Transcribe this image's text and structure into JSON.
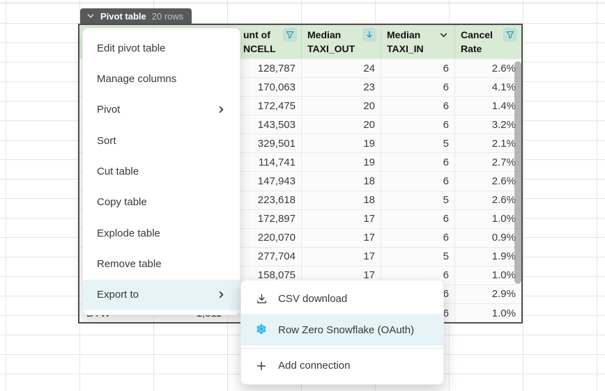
{
  "sheet_tab": {
    "label": "Pivot table",
    "row_count": "20 rows"
  },
  "context_menu": {
    "items": [
      {
        "label": "Edit pivot table",
        "has_submenu": false,
        "highlighted": false
      },
      {
        "label": "Manage columns",
        "has_submenu": false,
        "highlighted": false
      },
      {
        "label": "Pivot",
        "has_submenu": true,
        "highlighted": false
      },
      {
        "label": "Sort",
        "has_submenu": false,
        "highlighted": false
      },
      {
        "label": "Cut table",
        "has_submenu": false,
        "highlighted": false
      },
      {
        "label": "Copy table",
        "has_submenu": false,
        "highlighted": false
      },
      {
        "label": "Explode table",
        "has_submenu": false,
        "highlighted": false
      },
      {
        "label": "Remove table",
        "has_submenu": false,
        "highlighted": false
      },
      {
        "label": "Export to",
        "has_submenu": true,
        "highlighted": true
      }
    ]
  },
  "export_submenu": {
    "items": [
      {
        "label": "CSV download",
        "icon": "download-icon",
        "highlighted": false,
        "divider_before": false
      },
      {
        "label": "Row Zero Snowflake (OAuth)",
        "icon": "snowflake-icon",
        "highlighted": true,
        "divider_before": false
      },
      {
        "label": "Add connection",
        "icon": "plus-icon",
        "highlighted": false,
        "divider_before": true
      }
    ]
  },
  "pivot_table": {
    "columns": [
      {
        "header_line1": "",
        "header_line2": "",
        "icon": null
      },
      {
        "header_line1": "",
        "header_line2": "",
        "icon": "filter-icon"
      },
      {
        "header_line1": "unt of",
        "header_line2": "NCELL",
        "icon": "filter-icon"
      },
      {
        "header_line1": "Median",
        "header_line2": "TAXI_OUT",
        "icon": "sort-desc-icon"
      },
      {
        "header_line1": "Median",
        "header_line2": "TAXI_IN",
        "icon": "chevron-down-icon"
      },
      {
        "header_line1": "Cancel",
        "header_line2": "Rate",
        "icon": "filter-icon"
      }
    ],
    "rows": [
      [
        "",
        "",
        "128,787",
        "24",
        "6",
        "2.6%"
      ],
      [
        "",
        "",
        "170,063",
        "23",
        "6",
        "4.1%"
      ],
      [
        "",
        "",
        "172,475",
        "20",
        "6",
        "1.4%"
      ],
      [
        "",
        "",
        "143,503",
        "20",
        "6",
        "3.2%"
      ],
      [
        "",
        "",
        "329,501",
        "19",
        "5",
        "2.1%"
      ],
      [
        "",
        "",
        "114,741",
        "19",
        "6",
        "2.7%"
      ],
      [
        "",
        "",
        "147,943",
        "18",
        "6",
        "2.6%"
      ],
      [
        "",
        "",
        "223,618",
        "18",
        "5",
        "2.6%"
      ],
      [
        "",
        "",
        "172,897",
        "17",
        "6",
        "1.0%"
      ],
      [
        "",
        "",
        "220,070",
        "17",
        "6",
        "0.9%"
      ],
      [
        "",
        "",
        "277,704",
        "17",
        "5",
        "1.9%"
      ],
      [
        "",
        "",
        "158,075",
        "17",
        "6",
        "1.0%"
      ],
      [
        "",
        "",
        "",
        "",
        "6",
        "2.9%"
      ],
      [
        "DTW",
        "1,311",
        "",
        "",
        "6",
        "1.0%"
      ]
    ]
  },
  "colors": {
    "header_green": "#d9ead5",
    "icon_box_green": "#c3e0d6",
    "filter_teal": "#2d9ea6",
    "sort_arrow_blue": "#2f93c8",
    "highlight_blue": "#e6f3f7",
    "snowflake_blue": "#29b5e8",
    "tab_gray": "#59595b",
    "table_border": "#4e4e4e"
  }
}
